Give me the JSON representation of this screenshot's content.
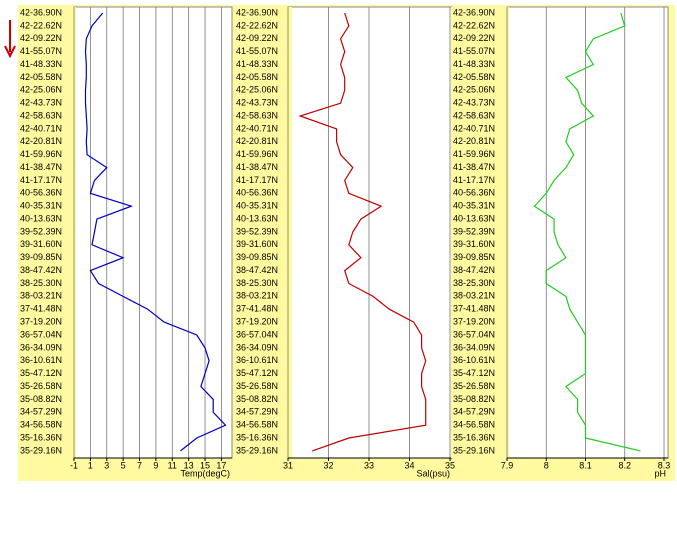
{
  "chart_data": [
    {
      "type": "line",
      "orientation": "horizontal",
      "xlabel": "Temp(degC)",
      "color": "#0000c0",
      "categories": [
        "42-36.90N",
        "42-22.62N",
        "42-09.22N",
        "41-55.07N",
        "41-48.33N",
        "42-05.58N",
        "42-25.06N",
        "42-43.73N",
        "42-58.63N",
        "42-40.71N",
        "42-20.81N",
        "41-59.96N",
        "41-38.47N",
        "41-17.17N",
        "40-56.36N",
        "40-35.31N",
        "40-13.63N",
        "39-52.39N",
        "39-31.60N",
        "39-09.85N",
        "38-47.42N",
        "38-25.30N",
        "38-03.21N",
        "37-41.48N",
        "37-19.20N",
        "36-57.04N",
        "36-34.09N",
        "36-10.61N",
        "35-47.12N",
        "35-26.58N",
        "35-08.82N",
        "34-57.29N",
        "34-56.58N",
        "35-16.36N",
        "35-29.16N"
      ],
      "values": [
        2.5,
        1.2,
        0.5,
        0.4,
        0.5,
        0.5,
        0.4,
        0.4,
        0.5,
        0.6,
        0.5,
        0.6,
        3,
        1.5,
        1,
        6,
        1.8,
        1.5,
        1.2,
        5,
        1,
        2,
        5,
        8,
        10,
        14,
        15,
        15.5,
        15,
        14.5,
        16,
        16,
        17.5,
        14,
        12
      ],
      "xlim": [
        -1,
        18
      ],
      "xticks": [
        -1,
        1,
        3,
        5,
        7,
        9,
        11,
        13,
        15,
        17
      ],
      "grid": true
    },
    {
      "type": "line",
      "orientation": "horizontal",
      "xlabel": "Sal(psu)",
      "color": "#c00000",
      "categories": [
        "42-36.90N",
        "42-22.62N",
        "42-09.22N",
        "41-55.07N",
        "41-48.33N",
        "42-05.58N",
        "42-25.06N",
        "42-43.73N",
        "42-58.63N",
        "42-40.71N",
        "42-20.81N",
        "41-59.96N",
        "41-38.47N",
        "41-17.17N",
        "40-56.36N",
        "40-35.31N",
        "40-13.63N",
        "39-52.39N",
        "39-31.60N",
        "39-09.85N",
        "38-47.42N",
        "38-25.30N",
        "38-03.21N",
        "37-41.48N",
        "37-19.20N",
        "36-57.04N",
        "36-34.09N",
        "36-10.61N",
        "35-47.12N",
        "35-26.58N",
        "35-08.82N",
        "34-57.29N",
        "34-56.58N",
        "35-16.36N",
        "35-29.16N"
      ],
      "values": [
        32.4,
        32.5,
        32.3,
        32.4,
        32.3,
        32.4,
        32.4,
        32.3,
        31.3,
        32.2,
        32.2,
        32.3,
        32.6,
        32.4,
        32.5,
        33.3,
        32.8,
        32.6,
        32.5,
        32.8,
        32.4,
        32.5,
        33.1,
        33.5,
        34.1,
        34.3,
        34.3,
        34.4,
        34.3,
        34.3,
        34.4,
        34.4,
        34.4,
        32.5,
        31.6
      ],
      "xlim": [
        31,
        35
      ],
      "xticks": [
        31,
        32,
        33,
        34,
        35
      ],
      "grid": true
    },
    {
      "type": "line",
      "orientation": "horizontal",
      "xlabel": "pH",
      "color": "#22cc22",
      "categories": [
        "42-36.90N",
        "42-22.62N",
        "42-09.22N",
        "41-55.07N",
        "41-48.33N",
        "42-05.58N",
        "42-25.06N",
        "42-43.73N",
        "42-58.63N",
        "42-40.71N",
        "42-20.81N",
        "41-59.96N",
        "41-38.47N",
        "41-17.17N",
        "40-56.36N",
        "40-35.31N",
        "40-13.63N",
        "39-52.39N",
        "39-31.60N",
        "39-09.85N",
        "38-47.42N",
        "38-25.30N",
        "38-03.21N",
        "37-41.48N",
        "37-19.20N",
        "36-57.04N",
        "36-34.09N",
        "36-10.61N",
        "35-47.12N",
        "35-26.58N",
        "35-08.82N",
        "34-57.29N",
        "34-56.58N",
        "35-16.36N",
        "35-29.16N"
      ],
      "values": [
        8.19,
        8.2,
        8.12,
        8.1,
        8.12,
        8.05,
        8.08,
        8.09,
        8.12,
        8.06,
        8.05,
        8.07,
        8.05,
        8.02,
        8,
        7.97,
        8.02,
        8.02,
        8.03,
        8.05,
        8,
        8,
        8.05,
        8.06,
        8.08,
        8.1,
        8.1,
        8.1,
        8.1,
        8.05,
        8.08,
        8.08,
        8.1,
        8.1,
        8.24
      ],
      "xlim": [
        7.9,
        8.3
      ],
      "xticks": [
        7.9,
        8,
        8.1,
        8.2,
        8.3
      ],
      "grid": true
    }
  ]
}
